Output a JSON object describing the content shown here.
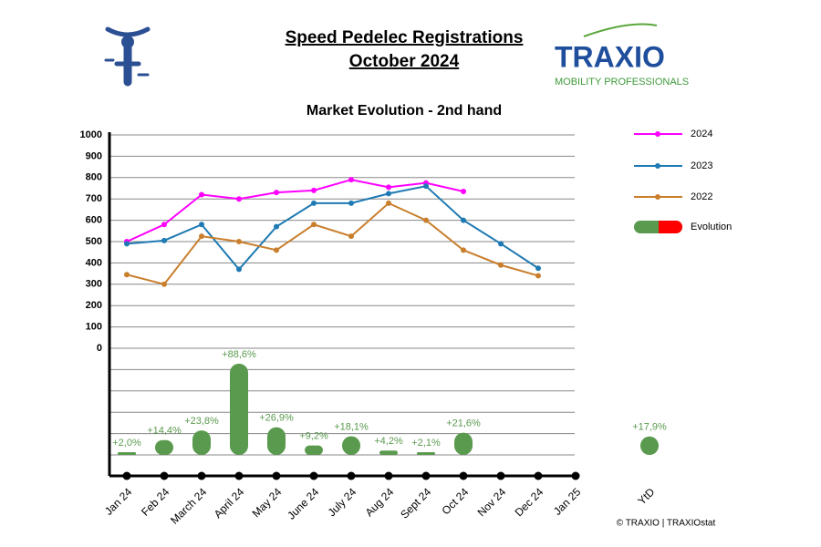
{
  "logo": {
    "name": "TRAXIO",
    "tagline": "MOBILITY PROFESSIONALS"
  },
  "chart_data": {
    "type": "line",
    "title": [
      "Speed Pedelec Registrations",
      "October 2024"
    ],
    "subtitle": "Market Evolution - 2nd hand",
    "source": "© TRAXIO | TRAXIOstat",
    "categories": [
      "Jan 24",
      "Feb 24",
      "March 24",
      "April 24",
      "May 24",
      "June 24",
      "July 24",
      "Aug 24",
      "Sept 24",
      "Oct 24",
      "Nov 24",
      "Dec 24",
      "Jan 25"
    ],
    "ylim": [
      0,
      1000
    ],
    "yticks": [
      0,
      100,
      200,
      300,
      400,
      500,
      600,
      700,
      800,
      900,
      1000
    ],
    "grid": true,
    "legend": "right",
    "series": [
      {
        "name": "2024",
        "color": "#ff00ff",
        "values": [
          500,
          580,
          720,
          700,
          730,
          740,
          790,
          755,
          775,
          735,
          null,
          null,
          null
        ]
      },
      {
        "name": "2023",
        "color": "#1f7ab3",
        "values": [
          490,
          505,
          580,
          370,
          570,
          680,
          680,
          725,
          760,
          600,
          490,
          375,
          null
        ]
      },
      {
        "name": "2022",
        "color": "#c97e2c",
        "values": [
          345,
          300,
          525,
          500,
          460,
          580,
          525,
          680,
          600,
          460,
          390,
          340,
          null
        ]
      },
      {
        "name": "Evolution",
        "color": "#5a9a4e",
        "negative_color": "#ff0000",
        "axis": "y2",
        "values": [
          2.0,
          14.4,
          23.8,
          88.6,
          26.9,
          9.2,
          18.1,
          4.2,
          2.1,
          21.6,
          null,
          null,
          null
        ],
        "value_labels": [
          "+2,0%",
          "+14,4%",
          "+23,8%",
          "+88,6%",
          "+26,9%",
          "+9,2%",
          "+18,1%",
          "+4,2%",
          "+2,1%",
          "+21,6%",
          null,
          null,
          null
        ]
      }
    ],
    "y2lim": [
      0,
      100
    ],
    "ytd": {
      "label": "YtD",
      "value": 17.9,
      "value_label": "+17,9%"
    }
  }
}
